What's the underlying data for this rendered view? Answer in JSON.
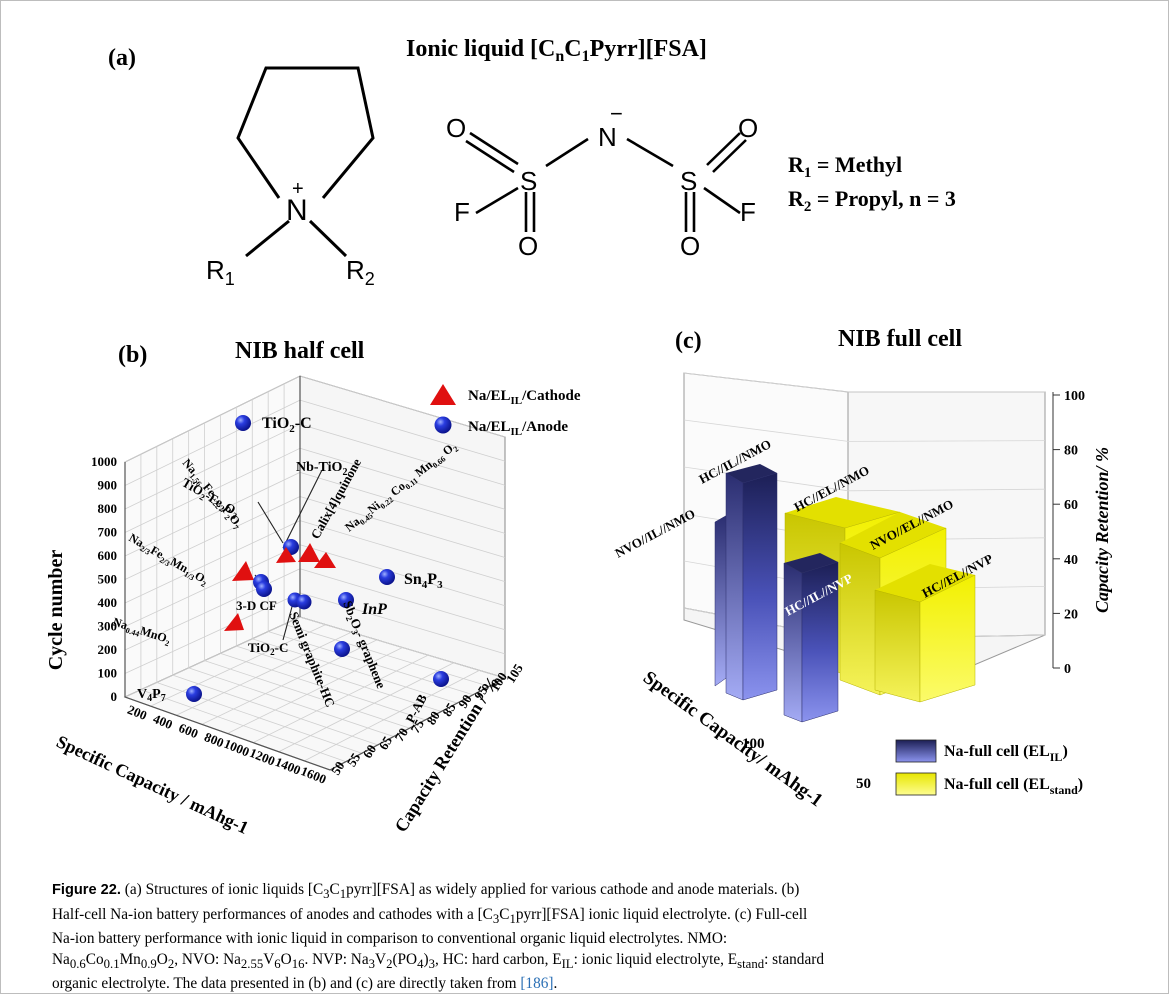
{
  "panel_a": {
    "letter": "(a)",
    "title_parts": [
      "Ionic liquid [C",
      "n",
      "C",
      "1",
      "Pyrr][FSA]"
    ],
    "cation_atoms": {
      "N": "N",
      "plus": "+",
      "R1": "R",
      "R1_sub": "1",
      "R2": "R",
      "R2_sub": "2"
    },
    "anion_atoms": {
      "N": "N",
      "minus": "−",
      "S": "S",
      "O": "O",
      "F": "F"
    },
    "substituents": [
      {
        "sym": "R",
        "sub": "1",
        "text": " = Methyl"
      },
      {
        "sym": "R",
        "sub": "2",
        "text": " = Propyl, n = 3"
      }
    ]
  },
  "panel_b": {
    "letter": "(b)",
    "title": "NIB half cell",
    "legend": [
      {
        "label_pre": "Na/EL",
        "label_sub": "IL",
        "label_post": "/Cathode",
        "marker": "triangle",
        "color": "#e01010"
      },
      {
        "label_pre": "Na/EL",
        "label_sub": "IL",
        "label_post": "/Anode",
        "marker": "sphere",
        "color": "#1420c8"
      }
    ],
    "z_axis_title": "Cycle number",
    "z_ticks": [
      "0",
      "100",
      "200",
      "300",
      "400",
      "500",
      "600",
      "700",
      "800",
      "900",
      "1000"
    ],
    "x_axis_title": "Specific Capacity / mAhg-1",
    "x_ticks": [
      "0",
      "200",
      "400",
      "600",
      "800",
      "1000",
      "1200",
      "1400",
      "1600"
    ],
    "y_axis_title": "Capacity Retention / %",
    "y_ticks": [
      "50",
      "55",
      "60",
      "65",
      "70",
      "75",
      "80",
      "85",
      "90",
      "95",
      "100",
      "105"
    ],
    "point_labels": {
      "tio2c_top": "TiO2-C",
      "nb_tio2": "Nb-TiO2",
      "na156": "Na1.56Fe1.22P2O7",
      "calix": "Calix[4]quinone",
      "na045": "Na0.45Ni0.22Co0.11Mn0.66O2",
      "tio2fe": "TiO2-Fe2O3",
      "na23": "Na2/3Fe2/3Mn1/3O2",
      "sn4p3": "Sn4P3",
      "inp": "InP",
      "cf3d": "3-D CF",
      "na044": "Na0.44MnO2",
      "semi": "Semi graphite-HC",
      "sb2o3": "Sb2O3- graphene",
      "tio2c_low": "TiO2-C",
      "v4p7": "V4P7",
      "pab": "P-AB"
    }
  },
  "panel_c": {
    "letter": "(c)",
    "title": "NIB full cell",
    "y_axis_title": "Capacity Retention/ %",
    "y_ticks": [
      "0",
      "20",
      "40",
      "60",
      "80",
      "100"
    ],
    "x_axis_title": "Specific Capacity/ mAhg-1",
    "x_ticks": [
      "100",
      "50"
    ],
    "legend": [
      {
        "label_pre": "Na-full cell (EL",
        "label_sub": "IL",
        "label_post": ")",
        "color": "#3a3f9a"
      },
      {
        "label_pre": "Na-full cell (EL",
        "label_sub": "stand",
        "label_post": ")",
        "color": "#e8e600"
      }
    ],
    "bar_labels": {
      "hc_il_nmo": "HC//IL//NMO",
      "nvo_il_nmo": "NVO//IL//NMO",
      "hc_il_nvp": "HC//IL//NVP",
      "hc_el_nmo": "HC//EL//NMO",
      "nvo_el_nmo": "NVO//EL//NMO",
      "hc_el_nvp": "HC//EL//NVP"
    }
  },
  "chart_data": [
    {
      "type": "scatter",
      "title": "NIB half cell",
      "xlabel": "Specific Capacity / mAhg-1",
      "ylabel": "Capacity Retention / %",
      "zlabel": "Cycle number",
      "xlim": [
        0,
        1600
      ],
      "ylim": [
        50,
        105
      ],
      "zlim": [
        0,
        1000
      ],
      "grid": true,
      "legend_position": "top-right",
      "series": [
        {
          "name": "Na/ELIL/Cathode",
          "marker": "triangle",
          "points": [
            {
              "label": "Na1.56Fe1.22P2O7",
              "x": 90,
              "y": 93,
              "z": 480
            },
            {
              "label": "Calix[4]quinone",
              "x": 250,
              "y": 95,
              "z": 490
            },
            {
              "label": "Na0.45Ni0.22Co0.11Mn0.66O2",
              "x": 130,
              "y": 90,
              "z": 470
            },
            {
              "label": "Na2/3Fe2/3Mn1/3O2",
              "x": 130,
              "y": 85,
              "z": 500
            },
            {
              "label": "Na0.44MnO2",
              "x": 110,
              "y": 85,
              "z": 200
            }
          ]
        },
        {
          "name": "Na/ELIL/Anode",
          "marker": "sphere",
          "points": [
            {
              "label": "TiO2-C",
              "x": 150,
              "y": 100,
              "z": 1000
            },
            {
              "label": "Nb-TiO2",
              "x": 180,
              "y": 100,
              "z": 500
            },
            {
              "label": "TiO2-Fe2O3",
              "x": 300,
              "y": 88,
              "z": 450
            },
            {
              "label": "Sn4P3",
              "x": 700,
              "y": 96,
              "z": 400
            },
            {
              "label": "InP",
              "x": 450,
              "y": 90,
              "z": 250
            },
            {
              "label": "3-D CF",
              "x": 250,
              "y": 95,
              "z": 300
            },
            {
              "label": "Semi graphite-HC",
              "x": 300,
              "y": 95,
              "z": 300
            },
            {
              "label": "Sb2O3- graphene",
              "x": 550,
              "y": 90,
              "z": 100
            },
            {
              "label": "TiO2-C",
              "x": 250,
              "y": 92,
              "z": 300
            },
            {
              "label": "V4P7",
              "x": 500,
              "y": 75,
              "z": 80
            },
            {
              "label": "P-AB",
              "x": 1500,
              "y": 100,
              "z": 20
            }
          ]
        }
      ]
    },
    {
      "type": "bar",
      "title": "NIB full cell",
      "xlabel": "Specific Capacity/ mAhg-1",
      "ylabel": "Capacity Retention/ %",
      "ylim": [
        0,
        105
      ],
      "legend_position": "bottom-right",
      "series": [
        {
          "name": "Na-full cell (ELIL)",
          "points": [
            {
              "label": "HC//IL//NMO",
              "value": 98
            },
            {
              "label": "NVO//IL//NMO",
              "value": 79
            },
            {
              "label": "HC//IL//NVP",
              "value": 60
            }
          ]
        },
        {
          "name": "Na-full cell (ELstand)",
          "points": [
            {
              "label": "HC//EL//NMO",
              "value": 85
            },
            {
              "label": "NVO//EL//NMO",
              "value": 85
            },
            {
              "label": "HC//EL//NVP",
              "value": 67
            }
          ]
        }
      ]
    }
  ],
  "caption": {
    "label": "Figure 22.",
    "lines": [
      " (a) Structures of ionic liquids [C3C1pyrr][FSA] as widely applied for various cathode and anode materials. (b)",
      "Half-cell Na-ion battery performances of anodes and cathodes with a [C3C1pyrr][FSA] ionic liquid electrolyte. (c) Full-cell",
      "Na-ion battery performance with ionic liquid in comparison to conventional organic liquid electrolytes. NMO:",
      "Na0.6Co0.1Mn0.9O2, NVO: Na2.55V6O16. NVP: Na3V2(PO4)3, HC: hard carbon, EIL: ionic liquid electrolyte, Estand: standard",
      "organic electrolyte. The data presented in (b) and (c) are directly taken from "
    ],
    "ref": "[186]",
    "end": "."
  }
}
